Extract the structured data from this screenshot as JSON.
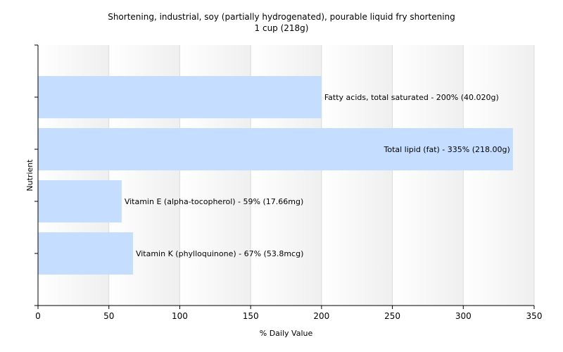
{
  "chart_data": {
    "type": "bar",
    "orientation": "horizontal",
    "title": "Shortening, industrial, soy (partially hydrogenated), pourable liquid fry shortening",
    "subtitle": "1 cup (218g)",
    "xlabel": "% Daily Value",
    "ylabel": "Nutrient",
    "xlim": [
      0,
      350
    ],
    "xticks": [
      0,
      50,
      100,
      150,
      200,
      250,
      300,
      350
    ],
    "grid": true,
    "categories": [
      "Fatty acids, total saturated",
      "Total lipid (fat)",
      "Vitamin E (alpha-tocopherol)",
      "Vitamin K (phylloquinone)"
    ],
    "values": [
      200,
      335,
      59,
      67
    ],
    "labels": [
      "Fatty acids, total saturated - 200% (40.020g)",
      "Total lipid (fat) - 335% (218.00g)",
      "Vitamin E (alpha-tocopherol) - 59% (17.66mg)",
      "Vitamin K (phylloquinone) - 67% (53.8mcg)"
    ],
    "colors": {
      "bar": "#c5deff",
      "axis": "#000000",
      "grid": "#dcdcdc"
    }
  }
}
